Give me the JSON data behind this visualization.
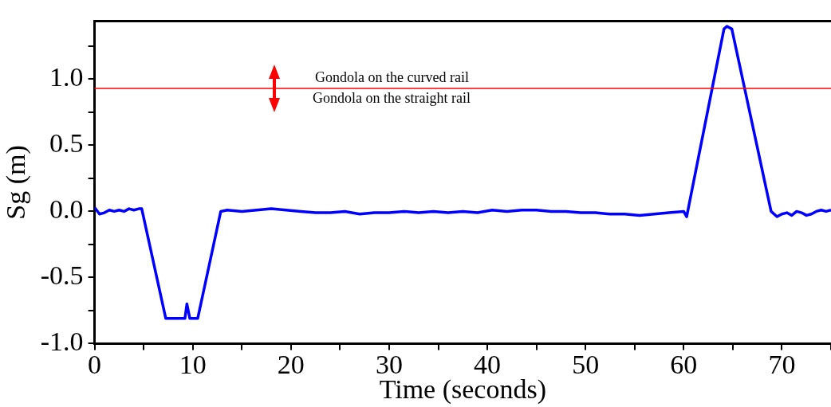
{
  "chart_data": {
    "type": "line",
    "xlabel": "Time (seconds)",
    "ylabel": "Sg (m)",
    "x": [
      0,
      0.5,
      1,
      1.5,
      2,
      2.5,
      3,
      3.5,
      4,
      4.5,
      4.8,
      7.25,
      9.2,
      9.4,
      9.7,
      10.5,
      12.85,
      13.5,
      15,
      16.5,
      18,
      19.5,
      21,
      22.5,
      24,
      25.5,
      27,
      28.5,
      30,
      31.5,
      33,
      34.5,
      36,
      37.5,
      39,
      40.5,
      42,
      43.5,
      45,
      46.5,
      48,
      49.5,
      51,
      52.5,
      54,
      55.5,
      57,
      58.5,
      60,
      60.3,
      64.1,
      64.4,
      64.9,
      68.9,
      69.5,
      70,
      70.5,
      71,
      71.5,
      72,
      72.5,
      73,
      73.5,
      74,
      74.5,
      75
    ],
    "series": [
      {
        "color": "#0000ff",
        "values": [
          0.03,
          -0.02,
          -0.01,
          0.01,
          0.0,
          0.01,
          0.0,
          0.02,
          0.01,
          0.02,
          0.02,
          -0.81,
          -0.81,
          -0.7,
          -0.81,
          -0.81,
          0.0,
          0.01,
          0.0,
          0.01,
          0.02,
          0.01,
          0.0,
          -0.01,
          -0.01,
          0.0,
          -0.02,
          -0.01,
          -0.01,
          0.0,
          -0.01,
          0.0,
          -0.01,
          0.0,
          -0.01,
          0.01,
          0.0,
          0.01,
          0.01,
          0.0,
          0.0,
          -0.01,
          -0.01,
          -0.02,
          -0.02,
          -0.03,
          -0.02,
          -0.01,
          0.0,
          -0.04,
          1.38,
          1.4,
          1.38,
          0.0,
          -0.04,
          -0.02,
          -0.01,
          -0.03,
          0.0,
          -0.01,
          -0.03,
          -0.02,
          0.0,
          0.01,
          0.0,
          0.01
        ]
      }
    ],
    "xlim": [
      0,
      75
    ],
    "xticks": [
      0,
      {
        "value": 5,
        "label": null
      },
      10,
      {
        "value": 15,
        "label": null
      },
      20,
      {
        "value": 25,
        "label": null
      },
      30,
      {
        "value": 35,
        "label": null
      },
      40,
      {
        "value": 45,
        "label": null
      },
      50,
      {
        "value": 55,
        "label": null
      },
      60,
      {
        "value": 65,
        "label": null
      },
      70,
      {
        "value": 75,
        "label": null
      }
    ],
    "ylim": [
      -1.0,
      1.44
    ],
    "yticks": [
      {
        "value": -1.0,
        "label": "-1.0"
      },
      {
        "value": -0.75,
        "label": null
      },
      {
        "value": -0.5,
        "label": "-0.5"
      },
      {
        "value": -0.25,
        "label": null
      },
      {
        "value": 0,
        "label": "0.0"
      },
      {
        "value": 0.25,
        "label": null
      },
      {
        "value": 0.5,
        "label": "0.5"
      },
      {
        "value": 0.75,
        "label": null
      },
      {
        "value": 1.0,
        "label": "1.0"
      },
      {
        "value": 1.25,
        "label": null
      }
    ],
    "ref_lines": [
      {
        "axis": "y",
        "value": 0.93,
        "color": "#ff0000"
      }
    ],
    "annotations": [
      "Gondola on the curved rail",
      "Gondola on the straight rail"
    ],
    "grid": false,
    "legend": false,
    "marker": "none",
    "line_style": "solid"
  }
}
